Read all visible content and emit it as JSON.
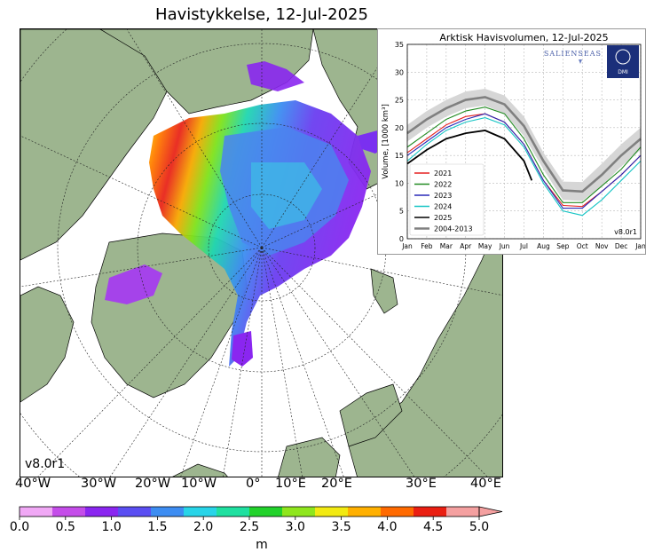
{
  "map": {
    "title": "Havistykkelse, 12-Jul-2025",
    "version": "v8.0r1",
    "lon_labels": [
      "40°W",
      "30°W",
      "20°W",
      "10°W",
      "0°",
      "10°E",
      "20°E",
      "30°E",
      "40°E"
    ],
    "colorbar": {
      "ticks": [
        "0.0",
        "0.5",
        "1.0",
        "1.5",
        "2.0",
        "2.5",
        "3.0",
        "3.5",
        "4.0",
        "4.5",
        "5.0"
      ],
      "unit": "m",
      "colors": [
        "#f0a8f5",
        "#c44de9",
        "#8a26f0",
        "#5a4ef2",
        "#3d8df2",
        "#28d4e8",
        "#1fe0a0",
        "#22d22b",
        "#8fe61d",
        "#f2ea12",
        "#ffb000",
        "#ff6a00",
        "#ea1f12",
        "#f4a0a0"
      ]
    },
    "colors": {
      "land": "#9db58f",
      "ocean": "#ffffff",
      "coast": "#000000",
      "rivers": "#8fb2e8"
    }
  },
  "chart_data": {
    "type": "line",
    "title": "Arktisk Havisvolumen, 12-Jul-2025",
    "ylabel": "Volume, [1000 km³]",
    "xlabel": "",
    "ylim": [
      0,
      35
    ],
    "xlim": [
      0,
      12
    ],
    "y_ticks": [
      0,
      5,
      10,
      15,
      20,
      25,
      30,
      35
    ],
    "x_tick_labels": [
      "Jan",
      "Feb",
      "Mar",
      "Apr",
      "May",
      "Jun",
      "Jul",
      "Aug",
      "Sep",
      "Oct",
      "Nov",
      "Dec",
      "Jan"
    ],
    "grid": true,
    "legend_position": "lower-left",
    "logo_text": "SALIENSEAS",
    "logo_badge": "DMI",
    "version": "v8.0r1",
    "band_2004_2013": {
      "x": [
        0,
        1,
        2,
        3,
        4,
        5,
        6,
        7,
        8,
        9,
        10,
        11,
        12
      ],
      "lower": [
        17.5,
        20,
        22,
        23.5,
        24,
        22.5,
        18.5,
        12.5,
        7.0,
        6.8,
        9.5,
        13,
        16
      ],
      "upper": [
        20.5,
        23,
        25,
        26.5,
        27,
        25.8,
        22.0,
        15.5,
        10.3,
        10.2,
        13.5,
        17,
        20
      ]
    },
    "series": [
      {
        "name": "2021",
        "color": "#e52222",
        "x": [
          0,
          1,
          2,
          3,
          4,
          5,
          6,
          7,
          8,
          9,
          10,
          11,
          12
        ],
        "y": [
          15.5,
          18,
          20.5,
          22,
          22.5,
          21,
          17,
          10.5,
          6.0,
          5.8,
          8.5,
          11.5,
          15
        ]
      },
      {
        "name": "2022",
        "color": "#228b22",
        "x": [
          0,
          1,
          2,
          3,
          4,
          5,
          6,
          7,
          8,
          9,
          10,
          11,
          12
        ],
        "y": [
          16.5,
          19,
          21.5,
          23,
          23.7,
          22.5,
          18,
          11.5,
          6.5,
          6.5,
          9.5,
          12.5,
          16.5
        ]
      },
      {
        "name": "2023",
        "color": "#2a2ab8",
        "x": [
          0,
          1,
          2,
          3,
          4,
          5,
          6,
          7,
          8,
          9,
          10,
          11,
          12
        ],
        "y": [
          15,
          17.5,
          20,
          21.5,
          22.5,
          21,
          17,
          10.5,
          5.5,
          5.5,
          8.5,
          11.5,
          15
        ]
      },
      {
        "name": "2024",
        "color": "#17c5c5",
        "x": [
          0,
          1,
          2,
          3,
          4,
          5,
          6,
          7,
          8,
          9,
          10,
          11,
          12
        ],
        "y": [
          14,
          17,
          19.5,
          21,
          21.8,
          20.5,
          16.5,
          10,
          5.0,
          4.2,
          7,
          10.5,
          14
        ]
      },
      {
        "name": "2025",
        "color": "#000000",
        "x": [
          0,
          1,
          2,
          3,
          4,
          5,
          6,
          6.4
        ],
        "y": [
          13.5,
          16,
          18,
          19,
          19.5,
          18,
          14,
          10.5
        ]
      },
      {
        "name": "2004-2013",
        "color": "#808080",
        "x": [
          0,
          1,
          2,
          3,
          4,
          5,
          6,
          7,
          8,
          9,
          10,
          11,
          12
        ],
        "y": [
          19,
          21.5,
          23.5,
          25,
          25.5,
          24.2,
          20.3,
          14,
          8.7,
          8.5,
          11.5,
          15,
          18
        ]
      }
    ]
  }
}
